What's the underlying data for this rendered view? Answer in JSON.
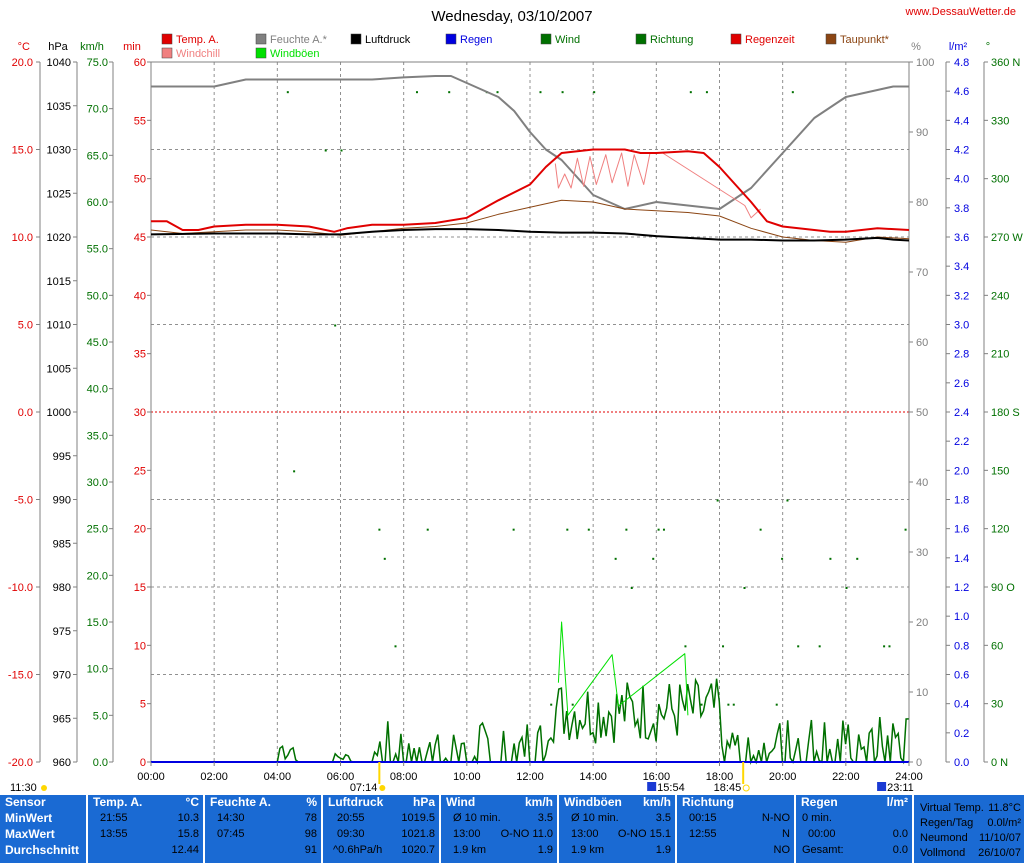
{
  "header": {
    "title": "Wednesday, 03/10/2007",
    "site": "www.DessauWetter.de"
  },
  "legend": [
    {
      "label": "Temp. A.",
      "color": "#e00000"
    },
    {
      "label": "Windchill",
      "color": "#f08080"
    },
    {
      "label": "Feuchte A.*",
      "color": "#808080"
    },
    {
      "label": "Windböen",
      "color": "#00e000"
    },
    {
      "label": "Luftdruck",
      "color": "#000000"
    },
    {
      "label": "Regen",
      "color": "#0000e0"
    },
    {
      "label": "Wind",
      "color": "#007000"
    },
    {
      "label": "Richtung",
      "color": "#007000"
    },
    {
      "label": "Regenzeit",
      "color": "#e00000"
    },
    {
      "label": "Taupunkt*",
      "color": "#8b4513"
    }
  ],
  "axes": {
    "temp": {
      "unit": "°C",
      "ticks": [
        "20.0",
        "15.0",
        "10.0",
        "5.0",
        "0.0",
        "-5.0",
        "-10.0",
        "-15.0",
        "-20.0"
      ]
    },
    "pressure": {
      "unit": "hPa",
      "ticks": [
        "1040",
        "1035",
        "1030",
        "1025",
        "1020",
        "1015",
        "1010",
        "1005",
        "1000",
        "995",
        "990",
        "985",
        "980",
        "975",
        "970",
        "965",
        "960"
      ]
    },
    "wind": {
      "unit": "km/h",
      "ticks": [
        "75.0",
        "70.0",
        "65.0",
        "60.0",
        "55.0",
        "50.0",
        "45.0",
        "40.0",
        "35.0",
        "30.0",
        "25.0",
        "20.0",
        "15.0",
        "10.0",
        "5.0",
        "0.0"
      ]
    },
    "min": {
      "unit": "min",
      "ticks": [
        "60",
        "55",
        "50",
        "45",
        "40",
        "35",
        "30",
        "25",
        "20",
        "15",
        "10",
        "5",
        "0"
      ]
    },
    "humidity": {
      "unit": "%",
      "ticks": [
        "100",
        "90",
        "80",
        "70",
        "60",
        "50",
        "40",
        "30",
        "20",
        "10",
        "0"
      ]
    },
    "rain": {
      "unit": "l/m²",
      "ticks": [
        "4.8",
        "4.6",
        "4.4",
        "4.2",
        "4.0",
        "3.8",
        "3.6",
        "3.4",
        "3.2",
        "3.0",
        "2.8",
        "2.6",
        "2.4",
        "2.2",
        "2.0",
        "1.8",
        "1.6",
        "1.4",
        "1.2",
        "1.0",
        "0.8",
        "0.6",
        "0.4",
        "0.2",
        "0.0"
      ]
    },
    "direction": {
      "unit": "°",
      "ticks": [
        "360 N",
        "330",
        "300",
        "270 W",
        "240",
        "210",
        "180 S",
        "150",
        "120",
        "90 O",
        "60",
        "30",
        "0 N"
      ]
    },
    "time": {
      "ticks": [
        "00:00",
        "02:00",
        "04:00",
        "06:00",
        "08:00",
        "10:00",
        "12:00",
        "14:00",
        "16:00",
        "18:00",
        "20:00",
        "22:00",
        "24:00"
      ]
    }
  },
  "events": {
    "left_time": "11:30",
    "sunrise": "07:14",
    "moon1": "15:54",
    "sunset": "18:45",
    "moon2": "23:11"
  },
  "chart_data": {
    "type": "line",
    "title": "Wednesday, 03/10/2007",
    "x_unit": "hour",
    "xlim": [
      0,
      24
    ],
    "series": [
      {
        "name": "Temp. A.",
        "unit": "°C",
        "points": [
          [
            0,
            10.9
          ],
          [
            0.5,
            10.9
          ],
          [
            1,
            10.4
          ],
          [
            1.5,
            10.4
          ],
          [
            2,
            10.6
          ],
          [
            3,
            10.7
          ],
          [
            4,
            10.7
          ],
          [
            5,
            10.6
          ],
          [
            5.8,
            10.3
          ],
          [
            6.2,
            10.5
          ],
          [
            7,
            10.7
          ],
          [
            8,
            10.7
          ],
          [
            9,
            10.8
          ],
          [
            10,
            11.1
          ],
          [
            11,
            12.1
          ],
          [
            12,
            13.0
          ],
          [
            12.5,
            14.0
          ],
          [
            13,
            14.8
          ],
          [
            14,
            15.0
          ],
          [
            15,
            15.0
          ],
          [
            15.5,
            14.8
          ],
          [
            16,
            14.8
          ],
          [
            17,
            14.9
          ],
          [
            17.5,
            14.8
          ],
          [
            18,
            14.0
          ],
          [
            18.5,
            13.0
          ],
          [
            19,
            12.0
          ],
          [
            19.5,
            10.9
          ],
          [
            20,
            10.6
          ],
          [
            21,
            10.4
          ],
          [
            21.5,
            10.3
          ],
          [
            22,
            10.3
          ],
          [
            23,
            10.5
          ],
          [
            24,
            10.4
          ]
        ]
      },
      {
        "name": "Windchill",
        "unit": "°C",
        "points": [
          [
            12.8,
            14.2
          ],
          [
            12.9,
            12.8
          ],
          [
            13.1,
            13.6
          ],
          [
            13.3,
            12.8
          ],
          [
            13.5,
            14.5
          ],
          [
            13.7,
            12.9
          ],
          [
            13.9,
            14.6
          ],
          [
            14.1,
            13.0
          ],
          [
            14.4,
            14.7
          ],
          [
            14.6,
            13.1
          ],
          [
            14.9,
            14.8
          ],
          [
            15.1,
            12.9
          ],
          [
            15.3,
            14.7
          ],
          [
            15.6,
            13.0
          ],
          [
            15.8,
            14.8
          ],
          [
            16.2,
            14.8
          ],
          [
            18.8,
            11.8
          ],
          [
            19.0,
            11.1
          ],
          [
            19.3,
            11.6
          ]
        ]
      },
      {
        "name": "Feuchte A.*",
        "unit": "%",
        "points": [
          [
            0,
            96.5
          ],
          [
            2,
            96.5
          ],
          [
            3,
            97.5
          ],
          [
            4,
            97.5
          ],
          [
            5,
            97.5
          ],
          [
            7,
            97.5
          ],
          [
            8,
            97.8
          ],
          [
            9,
            98
          ],
          [
            9.5,
            98
          ],
          [
            10,
            97
          ],
          [
            11,
            95
          ],
          [
            11.5,
            93
          ],
          [
            12,
            90
          ],
          [
            12.5,
            87.5
          ],
          [
            13,
            86
          ],
          [
            14,
            81
          ],
          [
            15,
            79
          ],
          [
            16,
            80
          ],
          [
            17,
            79.5
          ],
          [
            18,
            79
          ],
          [
            19,
            82
          ],
          [
            20,
            87
          ],
          [
            21,
            92
          ],
          [
            22,
            95
          ],
          [
            23,
            96
          ],
          [
            23.5,
            96.5
          ],
          [
            24,
            96.5
          ]
        ]
      },
      {
        "name": "Luftdruck",
        "unit": "hPa",
        "points": [
          [
            0,
            1020.3
          ],
          [
            2,
            1020.4
          ],
          [
            4,
            1020.4
          ],
          [
            5,
            1020.3
          ],
          [
            6,
            1020.3
          ],
          [
            7,
            1020.6
          ],
          [
            8,
            1020.8
          ],
          [
            9,
            1020.9
          ],
          [
            10,
            1020.9
          ],
          [
            11,
            1020.8
          ],
          [
            12,
            1020.6
          ],
          [
            13,
            1020.5
          ],
          [
            14,
            1020.5
          ],
          [
            15,
            1020.4
          ],
          [
            16,
            1020.1
          ],
          [
            17,
            1019.9
          ],
          [
            18,
            1019.7
          ],
          [
            19,
            1019.7
          ],
          [
            20,
            1019.6
          ],
          [
            21,
            1019.6
          ],
          [
            22,
            1019.7
          ],
          [
            23,
            1019.9
          ],
          [
            23.5,
            1019.7
          ],
          [
            24,
            1019.6
          ]
        ]
      },
      {
        "name": "Taupunkt*",
        "unit": "°C",
        "points": [
          [
            0,
            10.4
          ],
          [
            1,
            10.2
          ],
          [
            2,
            10.3
          ],
          [
            3,
            10.4
          ],
          [
            4,
            10.4
          ],
          [
            5,
            10.3
          ],
          [
            6,
            10.1
          ],
          [
            7,
            10.3
          ],
          [
            8,
            10.5
          ],
          [
            9,
            10.6
          ],
          [
            10,
            10.8
          ],
          [
            11,
            11.3
          ],
          [
            12,
            11.7
          ],
          [
            13,
            12.1
          ],
          [
            14,
            12.0
          ],
          [
            15,
            11.6
          ],
          [
            16,
            11.5
          ],
          [
            17,
            11.4
          ],
          [
            18,
            11.2
          ],
          [
            19,
            10.5
          ],
          [
            20,
            10.0
          ],
          [
            21,
            9.8
          ],
          [
            22,
            9.7
          ],
          [
            23,
            10.0
          ],
          [
            24,
            9.9
          ]
        ]
      },
      {
        "name": "Windböen",
        "unit": "km/h",
        "points": [
          [
            12.9,
            8.5
          ],
          [
            13,
            15
          ],
          [
            13.2,
            5
          ],
          [
            14.6,
            11.5
          ],
          [
            14.8,
            6
          ],
          [
            16.9,
            11.6
          ],
          [
            17.0,
            5
          ]
        ]
      },
      {
        "name": "Regen",
        "unit": "l/m²",
        "points": [
          [
            0,
            0
          ],
          [
            24,
            0
          ]
        ]
      }
    ]
  },
  "table": {
    "sensor": {
      "header": "Sensor",
      "labels": [
        "MinWert",
        "MaxWert",
        "Durchschnitt"
      ]
    },
    "temp": {
      "header": "Temp. A.",
      "unit": "°C",
      "rows": [
        [
          "21:55",
          "10.3"
        ],
        [
          "13:55",
          "15.8"
        ],
        [
          "",
          "12.44"
        ]
      ]
    },
    "humidity": {
      "header": "Feuchte A.",
      "unit": "%",
      "rows": [
        [
          "14:30",
          "78"
        ],
        [
          "07:45",
          "98"
        ],
        [
          "",
          "91"
        ]
      ]
    },
    "pressure": {
      "header": "Luftdruck",
      "unit": "hPa",
      "rows": [
        [
          "20:55",
          "1019.5"
        ],
        [
          "09:30",
          "1021.8"
        ],
        [
          "^0.6hPa/h",
          "1020.7"
        ]
      ]
    },
    "wind": {
      "header": "Wind",
      "unit": "km/h",
      "rows": [
        [
          "Ø 10 min.",
          "3.5"
        ],
        [
          "13:00",
          "O-NO 11.0"
        ],
        [
          "1.9 km",
          "1.9"
        ]
      ]
    },
    "gusts": {
      "header": "Windböen",
      "unit": "km/h",
      "rows": [
        [
          "Ø 10 min.",
          "3.5"
        ],
        [
          "13:00",
          "O-NO 15.1"
        ],
        [
          "1.9 km",
          "1.9"
        ]
      ]
    },
    "direction": {
      "header": "Richtung",
      "rows": [
        [
          "00:15",
          "N-NO"
        ],
        [
          "12:55",
          "N"
        ],
        [
          "",
          "NO"
        ]
      ]
    },
    "rain": {
      "header": "Regen",
      "unit": "l/m²",
      "rows": [
        [
          "0 min.",
          ""
        ],
        [
          "00:00",
          "0.0"
        ],
        [
          "Gesamt:",
          "0.0"
        ]
      ]
    },
    "info": {
      "rows": [
        [
          "Virtual Temp.",
          "11.8°C"
        ],
        [
          "Regen/Tag",
          "0.0l/m²"
        ],
        [
          "Neumond",
          "11/10/07"
        ],
        [
          "Vollmond",
          "26/10/07"
        ]
      ]
    }
  }
}
